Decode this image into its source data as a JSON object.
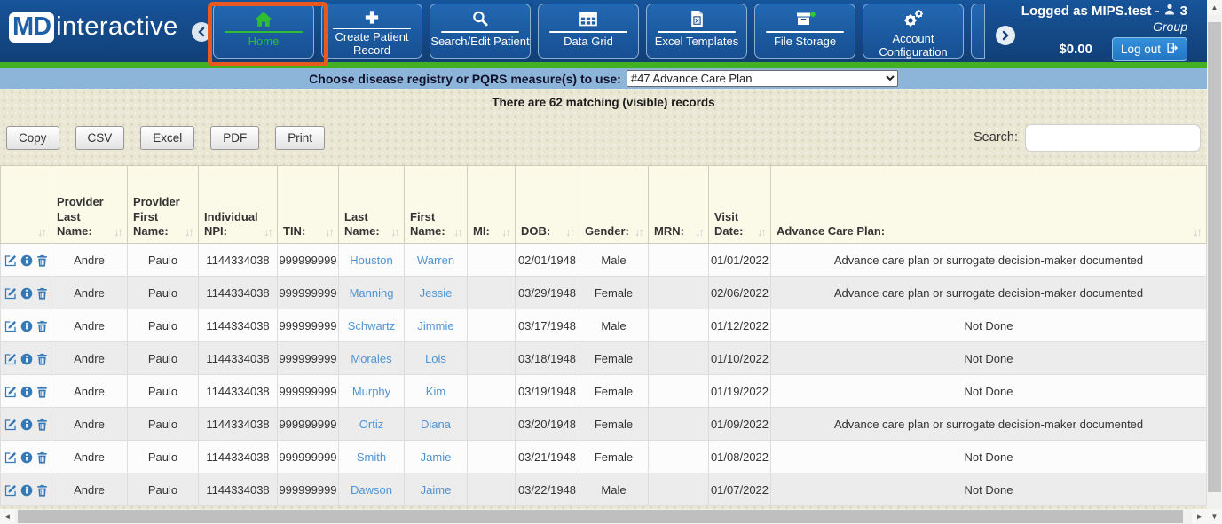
{
  "colors": {
    "navbar_blue": "#17549a",
    "nav_button_blue": "#2268b2",
    "accent_green": "#43af22",
    "active_nav_green": "#2fbe2f",
    "highlight_orange": "#e75a1d",
    "measure_bar_blue": "#8db4d9",
    "header_cream": "#fbfae9",
    "link_blue": "#4f94d4",
    "action_icon_blue": "#3579b6"
  },
  "brand": {
    "md": "MD",
    "name": "interactive"
  },
  "nav": {
    "items": [
      {
        "label": "Home",
        "icon": "home-icon",
        "active": true,
        "highlighted": true
      },
      {
        "label": "Create Patient Record",
        "icon": "plus-icon"
      },
      {
        "label": "Search/Edit Patient",
        "icon": "search-icon"
      },
      {
        "label": "Data Grid",
        "icon": "data-grid-icon"
      },
      {
        "label": "Excel Templates",
        "icon": "excel-file-icon"
      },
      {
        "label": "File Storage",
        "icon": "storage-box-icon"
      },
      {
        "label": "Account Configuration",
        "icon": "gears-icon"
      }
    ]
  },
  "user": {
    "logged_as": "Logged as MIPS.test -",
    "group_count": "3",
    "group_label": "Group",
    "balance": "$0.00",
    "logout_label": "Log out"
  },
  "measure_bar": {
    "label": "Choose disease registry or PQRS measure(s) to use:",
    "selected_option": "#47 Advance Care Plan"
  },
  "records_info": "There are 62 matching (visible) records",
  "toolbar": {
    "export_buttons": [
      "Copy",
      "CSV",
      "Excel",
      "PDF",
      "Print"
    ],
    "search_label": "Search:",
    "search_value": "",
    "search_placeholder": ""
  },
  "table": {
    "columns": [
      "",
      "Provider Last Name:",
      "Provider First Name:",
      "Individual NPI:",
      "TIN:",
      "Last Name:",
      "First Name:",
      "MI:",
      "DOB:",
      "Gender:",
      "MRN:",
      "Visit Date:",
      "Advance Care Plan:"
    ],
    "row_action_icons": [
      "edit-icon",
      "info-icon",
      "delete-icon"
    ],
    "rows": [
      {
        "provider_last": "Andre",
        "provider_first": "Paulo",
        "individual_npi": "1144334038",
        "tin": "999999999",
        "last_name": "Houston",
        "first_name": "Warren",
        "mi": "",
        "dob": "02/01/1948",
        "gender": "Male",
        "mrn": "",
        "visit_date": "01/01/2022",
        "advance_care_plan": "Advance care plan or surrogate decision-maker documented"
      },
      {
        "provider_last": "Andre",
        "provider_first": "Paulo",
        "individual_npi": "1144334038",
        "tin": "999999999",
        "last_name": "Manning",
        "first_name": "Jessie",
        "mi": "",
        "dob": "03/29/1948",
        "gender": "Female",
        "mrn": "",
        "visit_date": "02/06/2022",
        "advance_care_plan": "Advance care plan or surrogate decision-maker documented"
      },
      {
        "provider_last": "Andre",
        "provider_first": "Paulo",
        "individual_npi": "1144334038",
        "tin": "999999999",
        "last_name": "Schwartz",
        "first_name": "Jimmie",
        "mi": "",
        "dob": "03/17/1948",
        "gender": "Male",
        "mrn": "",
        "visit_date": "01/12/2022",
        "advance_care_plan": "Not Done"
      },
      {
        "provider_last": "Andre",
        "provider_first": "Paulo",
        "individual_npi": "1144334038",
        "tin": "999999999",
        "last_name": "Morales",
        "first_name": "Lois",
        "mi": "",
        "dob": "03/18/1948",
        "gender": "Female",
        "mrn": "",
        "visit_date": "01/10/2022",
        "advance_care_plan": "Not Done"
      },
      {
        "provider_last": "Andre",
        "provider_first": "Paulo",
        "individual_npi": "1144334038",
        "tin": "999999999",
        "last_name": "Murphy",
        "first_name": "Kim",
        "mi": "",
        "dob": "03/19/1948",
        "gender": "Female",
        "mrn": "",
        "visit_date": "01/19/2022",
        "advance_care_plan": "Not Done"
      },
      {
        "provider_last": "Andre",
        "provider_first": "Paulo",
        "individual_npi": "1144334038",
        "tin": "999999999",
        "last_name": "Ortiz",
        "first_name": "Diana",
        "mi": "",
        "dob": "03/20/1948",
        "gender": "Female",
        "mrn": "",
        "visit_date": "01/09/2022",
        "advance_care_plan": "Advance care plan or surrogate decision-maker documented"
      },
      {
        "provider_last": "Andre",
        "provider_first": "Paulo",
        "individual_npi": "1144334038",
        "tin": "999999999",
        "last_name": "Smith",
        "first_name": "Jamie",
        "mi": "",
        "dob": "03/21/1948",
        "gender": "Female",
        "mrn": "",
        "visit_date": "01/08/2022",
        "advance_care_plan": "Not Done"
      },
      {
        "provider_last": "Andre",
        "provider_first": "Paulo",
        "individual_npi": "1144334038",
        "tin": "999999999",
        "last_name": "Dawson",
        "first_name": "Jaime",
        "mi": "",
        "dob": "03/22/1948",
        "gender": "Male",
        "mrn": "",
        "visit_date": "01/07/2022",
        "advance_care_plan": "Not Done"
      }
    ]
  }
}
